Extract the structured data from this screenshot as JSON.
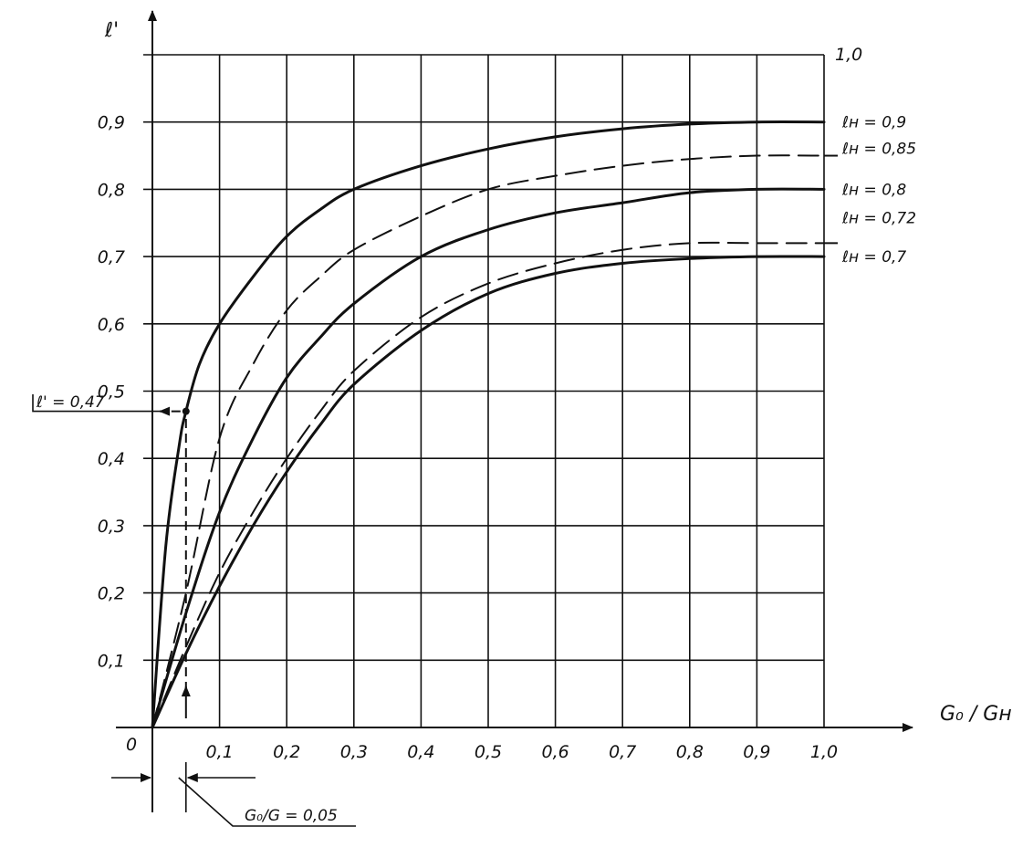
{
  "chart_data": {
    "type": "line",
    "ylabel": "ℓ'",
    "xlabel": "G₀ / Gн",
    "origin_label": "0",
    "xlim": [
      0,
      1.0
    ],
    "ylim": [
      0,
      1.0
    ],
    "grid": true,
    "x_ticks": [
      "0,1",
      "0,2",
      "0,3",
      "0,4",
      "0,5",
      "0,6",
      "0,7",
      "0,8",
      "0,9",
      "1,0"
    ],
    "y_ticks": [
      "0,1",
      "0,2",
      "0,3",
      "0,4",
      "0,5",
      "0,6",
      "0,7",
      "0,8",
      "0,9"
    ],
    "top_right_label": "1,0",
    "series": [
      {
        "name": "ℓн = 0,9",
        "style": "solid",
        "x": [
          0,
          0.02,
          0.04,
          0.05,
          0.07,
          0.1,
          0.15,
          0.2,
          0.25,
          0.3,
          0.4,
          0.5,
          0.6,
          0.7,
          0.8,
          0.9,
          1.0
        ],
        "y": [
          0,
          0.27,
          0.42,
          0.47,
          0.54,
          0.6,
          0.67,
          0.73,
          0.77,
          0.8,
          0.835,
          0.86,
          0.878,
          0.89,
          0.897,
          0.9,
          0.9
        ]
      },
      {
        "name": "ℓн = 0,85",
        "style": "dashed",
        "x": [
          0,
          0.05,
          0.1,
          0.15,
          0.2,
          0.25,
          0.3,
          0.4,
          0.5,
          0.6,
          0.7,
          0.8,
          0.9,
          1.0
        ],
        "y": [
          0,
          0.2,
          0.43,
          0.54,
          0.62,
          0.67,
          0.71,
          0.76,
          0.8,
          0.82,
          0.835,
          0.845,
          0.85,
          0.85
        ]
      },
      {
        "name": "ℓн = 0,8",
        "style": "solid",
        "x": [
          0,
          0.05,
          0.1,
          0.15,
          0.2,
          0.25,
          0.3,
          0.4,
          0.5,
          0.6,
          0.7,
          0.8,
          0.9,
          1.0
        ],
        "y": [
          0,
          0.17,
          0.32,
          0.43,
          0.52,
          0.58,
          0.63,
          0.7,
          0.74,
          0.765,
          0.78,
          0.795,
          0.8,
          0.8
        ]
      },
      {
        "name": "ℓн = 0,72",
        "style": "dashed",
        "x": [
          0,
          0.05,
          0.1,
          0.15,
          0.2,
          0.25,
          0.3,
          0.4,
          0.5,
          0.6,
          0.7,
          0.8,
          0.9,
          1.0
        ],
        "y": [
          0,
          0.12,
          0.23,
          0.32,
          0.4,
          0.47,
          0.53,
          0.61,
          0.66,
          0.69,
          0.71,
          0.72,
          0.72,
          0.72
        ]
      },
      {
        "name": "ℓн = 0,7",
        "style": "solid",
        "x": [
          0,
          0.05,
          0.1,
          0.15,
          0.2,
          0.25,
          0.3,
          0.4,
          0.5,
          0.6,
          0.7,
          0.8,
          0.9,
          1.0
        ],
        "y": [
          0,
          0.11,
          0.21,
          0.3,
          0.38,
          0.45,
          0.51,
          0.59,
          0.645,
          0.675,
          0.69,
          0.697,
          0.7,
          0.7
        ]
      }
    ],
    "annotations": [
      {
        "name": "read-value",
        "text": "ℓ' = 0,47",
        "x": 0.05,
        "y": 0.47
      },
      {
        "name": "input-value",
        "text": "G₀/G = 0,05",
        "x": 0.05
      }
    ]
  }
}
